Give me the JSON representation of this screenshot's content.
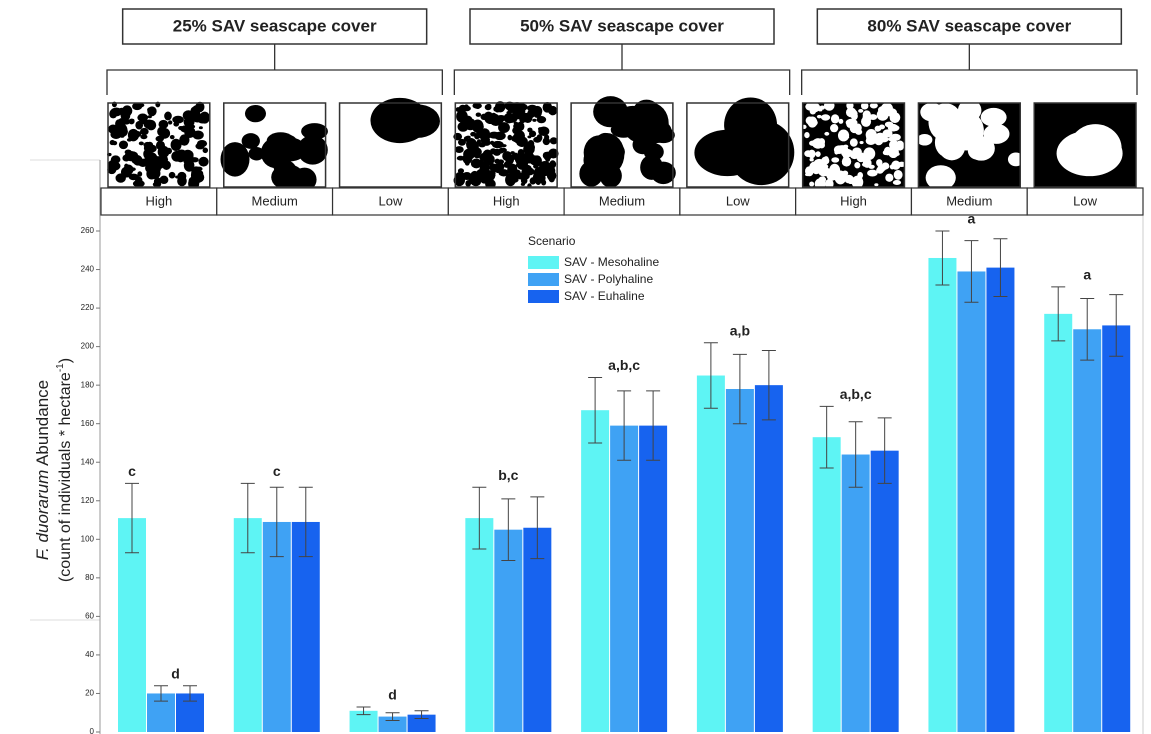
{
  "chart_data": {
    "type": "bar",
    "group_titles": [
      "25%  SAV seascape cover",
      "50%  SAV seascape cover",
      "80%  SAV seascape cover"
    ],
    "categories": [
      "High",
      "Medium",
      "Low",
      "High",
      "Medium",
      "Low",
      "High",
      "Medium",
      "Low"
    ],
    "y_label": {
      "species": "F. duorarum",
      "text": " Abundance",
      "unit": [
        "(count of individuals * hectare",
        "-1",
        ")"
      ]
    },
    "legend_title": "Scenario",
    "series": [
      {
        "name": "SAV - Mesohaline",
        "color": "#5ef4f4",
        "values": [
          111,
          111,
          11,
          111,
          167,
          185,
          153,
          246,
          217
        ],
        "errors": [
          18,
          18,
          2,
          16,
          17,
          17,
          16,
          14,
          14
        ]
      },
      {
        "name": "SAV - Polyhaline",
        "color": "#3fa2f4",
        "values": [
          20,
          109,
          8,
          105,
          159,
          178,
          144,
          239,
          209
        ],
        "errors": [
          4,
          18,
          2,
          16,
          18,
          18,
          17,
          16,
          16
        ]
      },
      {
        "name": "SAV - Euhaline",
        "color": "#1763ef",
        "values": [
          20,
          109,
          9,
          106,
          159,
          180,
          146,
          241,
          211
        ],
        "errors": [
          4,
          18,
          2,
          16,
          18,
          18,
          17,
          15,
          16
        ]
      }
    ],
    "ylim": [
      0,
      260
    ],
    "yticks": [
      0,
      20,
      40,
      60,
      80,
      100,
      120,
      140,
      160,
      180,
      200,
      220,
      240,
      260
    ],
    "significance": [
      [
        "c",
        "d"
      ],
      [
        "c"
      ],
      [
        "d"
      ],
      [
        "b,c"
      ],
      [
        "a,b,c"
      ],
      [
        "a,b"
      ],
      [
        "a,b,c"
      ],
      [
        "a"
      ],
      [
        "a"
      ]
    ]
  }
}
